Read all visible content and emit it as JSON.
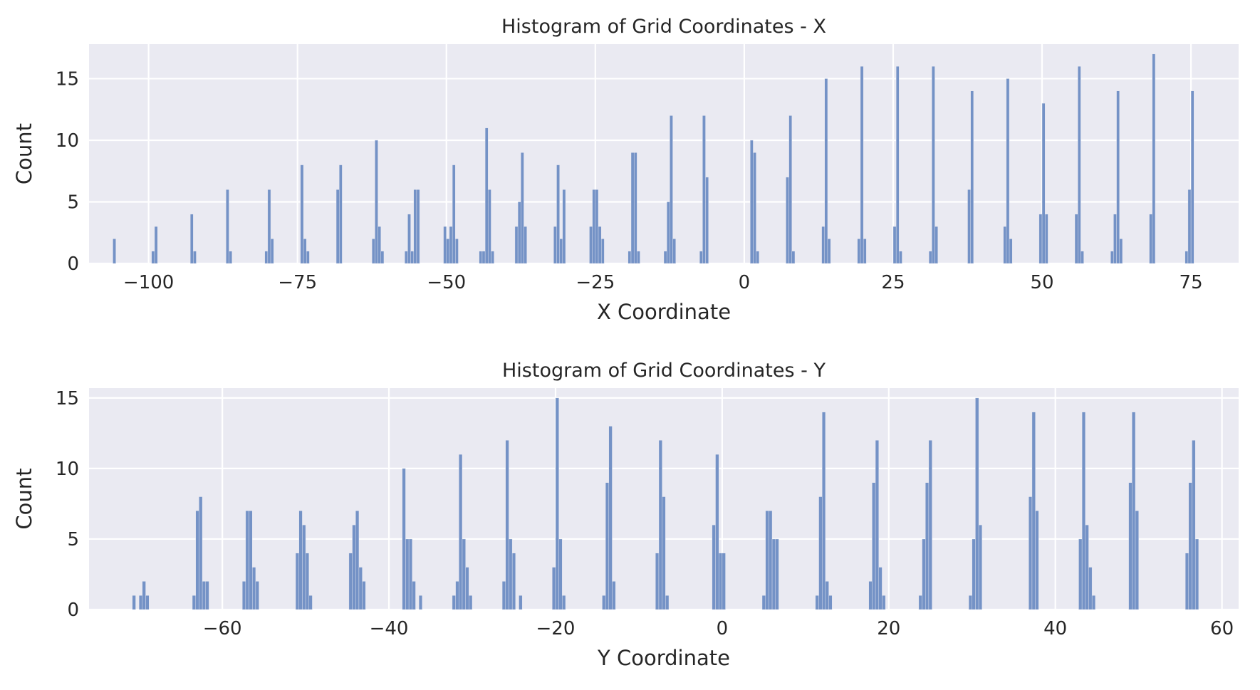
{
  "chart_data": [
    {
      "type": "bar",
      "title": "Histogram of Grid Coordinates - X",
      "xlabel": "X Coordinate",
      "ylabel": "Count",
      "xlim": [
        -110,
        83
      ],
      "ylim": [
        0,
        17.8
      ],
      "xticks": [
        -100,
        -75,
        -50,
        -25,
        0,
        25,
        50,
        75
      ],
      "xtick_labels": [
        "−100",
        "−75",
        "−50",
        "−25",
        "0",
        "25",
        "50",
        "75"
      ],
      "yticks": [
        0,
        5,
        10,
        15
      ],
      "ytick_labels": [
        "0",
        "5",
        "10",
        "15"
      ],
      "grid": true,
      "bar_color": "#7492c6",
      "bin_width": 0.5,
      "bins": [
        {
          "x": -106,
          "count": 2
        },
        {
          "x": -99.5,
          "count": 1
        },
        {
          "x": -99,
          "count": 3
        },
        {
          "x": -93,
          "count": 4
        },
        {
          "x": -92.5,
          "count": 1
        },
        {
          "x": -87,
          "count": 6
        },
        {
          "x": -86.5,
          "count": 1
        },
        {
          "x": -80.5,
          "count": 1
        },
        {
          "x": -80,
          "count": 6
        },
        {
          "x": -79.5,
          "count": 2
        },
        {
          "x": -74.5,
          "count": 8
        },
        {
          "x": -74,
          "count": 2
        },
        {
          "x": -73.5,
          "count": 1
        },
        {
          "x": -68.5,
          "count": 6
        },
        {
          "x": -68,
          "count": 8
        },
        {
          "x": -62.5,
          "count": 2
        },
        {
          "x": -62,
          "count": 10
        },
        {
          "x": -61.5,
          "count": 3
        },
        {
          "x": -61,
          "count": 1
        },
        {
          "x": -57,
          "count": 1
        },
        {
          "x": -56.5,
          "count": 4
        },
        {
          "x": -56,
          "count": 1
        },
        {
          "x": -55.5,
          "count": 6
        },
        {
          "x": -55,
          "count": 6
        },
        {
          "x": -50.5,
          "count": 3
        },
        {
          "x": -50,
          "count": 2
        },
        {
          "x": -49.5,
          "count": 3
        },
        {
          "x": -49,
          "count": 8
        },
        {
          "x": -48.5,
          "count": 2
        },
        {
          "x": -44.5,
          "count": 1
        },
        {
          "x": -44,
          "count": 1
        },
        {
          "x": -43.5,
          "count": 11
        },
        {
          "x": -43,
          "count": 6
        },
        {
          "x": -42.5,
          "count": 1
        },
        {
          "x": -38.5,
          "count": 3
        },
        {
          "x": -38,
          "count": 5
        },
        {
          "x": -37.5,
          "count": 9
        },
        {
          "x": -37,
          "count": 3
        },
        {
          "x": -32,
          "count": 3
        },
        {
          "x": -31.5,
          "count": 8
        },
        {
          "x": -31,
          "count": 2
        },
        {
          "x": -30.5,
          "count": 6
        },
        {
          "x": -26,
          "count": 3
        },
        {
          "x": -25.5,
          "count": 6
        },
        {
          "x": -25,
          "count": 6
        },
        {
          "x": -24.5,
          "count": 3
        },
        {
          "x": -24,
          "count": 2
        },
        {
          "x": -19.5,
          "count": 1
        },
        {
          "x": -19,
          "count": 9
        },
        {
          "x": -18.5,
          "count": 9
        },
        {
          "x": -18,
          "count": 1
        },
        {
          "x": -13.5,
          "count": 1
        },
        {
          "x": -13,
          "count": 5
        },
        {
          "x": -12.5,
          "count": 12
        },
        {
          "x": -12,
          "count": 2
        },
        {
          "x": -7.5,
          "count": 1
        },
        {
          "x": -7,
          "count": 12
        },
        {
          "x": -6.5,
          "count": 7
        },
        {
          "x": 1,
          "count": 10
        },
        {
          "x": 1.5,
          "count": 9
        },
        {
          "x": 2,
          "count": 1
        },
        {
          "x": 7,
          "count": 7
        },
        {
          "x": 7.5,
          "count": 12
        },
        {
          "x": 8,
          "count": 1
        },
        {
          "x": 13,
          "count": 3
        },
        {
          "x": 13.5,
          "count": 15
        },
        {
          "x": 14,
          "count": 2
        },
        {
          "x": 19,
          "count": 2
        },
        {
          "x": 19.5,
          "count": 16
        },
        {
          "x": 20,
          "count": 2
        },
        {
          "x": 25,
          "count": 3
        },
        {
          "x": 25.5,
          "count": 16
        },
        {
          "x": 26,
          "count": 1
        },
        {
          "x": 31,
          "count": 1
        },
        {
          "x": 31.5,
          "count": 16
        },
        {
          "x": 32,
          "count": 3
        },
        {
          "x": 37.5,
          "count": 6
        },
        {
          "x": 38,
          "count": 14
        },
        {
          "x": 43.5,
          "count": 3
        },
        {
          "x": 44,
          "count": 15
        },
        {
          "x": 44.5,
          "count": 2
        },
        {
          "x": 49.5,
          "count": 4
        },
        {
          "x": 50,
          "count": 13
        },
        {
          "x": 50.5,
          "count": 4
        },
        {
          "x": 55.5,
          "count": 4
        },
        {
          "x": 56,
          "count": 16
        },
        {
          "x": 56.5,
          "count": 1
        },
        {
          "x": 61.5,
          "count": 1
        },
        {
          "x": 62,
          "count": 4
        },
        {
          "x": 62.5,
          "count": 14
        },
        {
          "x": 63,
          "count": 2
        },
        {
          "x": 68,
          "count": 4
        },
        {
          "x": 68.5,
          "count": 17
        },
        {
          "x": 74,
          "count": 1
        },
        {
          "x": 74.5,
          "count": 6
        },
        {
          "x": 75,
          "count": 14
        }
      ]
    },
    {
      "type": "bar",
      "title": "Histogram of Grid Coordinates - Y",
      "xlabel": "Y Coordinate",
      "ylabel": "Count",
      "xlim": [
        -76,
        62
      ],
      "ylim": [
        0,
        15.7
      ],
      "xticks": [
        -60,
        -40,
        -20,
        0,
        20,
        40,
        60
      ],
      "xtick_labels": [
        "−60",
        "−40",
        "−20",
        "0",
        "20",
        "40",
        "60"
      ],
      "yticks": [
        0,
        5,
        10,
        15
      ],
      "ytick_labels": [
        "0",
        "5",
        "10",
        "15"
      ],
      "grid": true,
      "bar_color": "#7492c6",
      "bin_width": 0.4,
      "bins": [
        {
          "x": -70.8,
          "count": 1
        },
        {
          "x": -70,
          "count": 1
        },
        {
          "x": -69.6,
          "count": 2
        },
        {
          "x": -69.2,
          "count": 1
        },
        {
          "x": -63.6,
          "count": 1
        },
        {
          "x": -63.2,
          "count": 7
        },
        {
          "x": -62.8,
          "count": 8
        },
        {
          "x": -62.4,
          "count": 2
        },
        {
          "x": -62,
          "count": 2
        },
        {
          "x": -57.6,
          "count": 2
        },
        {
          "x": -57.2,
          "count": 7
        },
        {
          "x": -56.8,
          "count": 7
        },
        {
          "x": -56.4,
          "count": 3
        },
        {
          "x": -56,
          "count": 2
        },
        {
          "x": -51.2,
          "count": 4
        },
        {
          "x": -50.8,
          "count": 7
        },
        {
          "x": -50.4,
          "count": 6
        },
        {
          "x": -50,
          "count": 4
        },
        {
          "x": -49.6,
          "count": 1
        },
        {
          "x": -44.8,
          "count": 4
        },
        {
          "x": -44.4,
          "count": 6
        },
        {
          "x": -44,
          "count": 7
        },
        {
          "x": -43.6,
          "count": 3
        },
        {
          "x": -43.2,
          "count": 2
        },
        {
          "x": -38.4,
          "count": 10
        },
        {
          "x": -38,
          "count": 5
        },
        {
          "x": -37.6,
          "count": 5
        },
        {
          "x": -37.2,
          "count": 2
        },
        {
          "x": -36.4,
          "count": 1
        },
        {
          "x": -32.4,
          "count": 1
        },
        {
          "x": -32,
          "count": 2
        },
        {
          "x": -31.6,
          "count": 11
        },
        {
          "x": -31.2,
          "count": 5
        },
        {
          "x": -30.8,
          "count": 3
        },
        {
          "x": -30.4,
          "count": 1
        },
        {
          "x": -26.4,
          "count": 2
        },
        {
          "x": -26,
          "count": 12
        },
        {
          "x": -25.6,
          "count": 5
        },
        {
          "x": -25.2,
          "count": 4
        },
        {
          "x": -24.4,
          "count": 1
        },
        {
          "x": -20.4,
          "count": 3
        },
        {
          "x": -20,
          "count": 15
        },
        {
          "x": -19.6,
          "count": 5
        },
        {
          "x": -19.2,
          "count": 1
        },
        {
          "x": -14.4,
          "count": 1
        },
        {
          "x": -14,
          "count": 9
        },
        {
          "x": -13.6,
          "count": 13
        },
        {
          "x": -13.2,
          "count": 2
        },
        {
          "x": -8,
          "count": 4
        },
        {
          "x": -7.6,
          "count": 12
        },
        {
          "x": -7.2,
          "count": 8
        },
        {
          "x": -6.8,
          "count": 1
        },
        {
          "x": -1.2,
          "count": 6
        },
        {
          "x": -0.8,
          "count": 11
        },
        {
          "x": -0.4,
          "count": 4
        },
        {
          "x": 0,
          "count": 4
        },
        {
          "x": 4.8,
          "count": 1
        },
        {
          "x": 5.2,
          "count": 7
        },
        {
          "x": 5.6,
          "count": 7
        },
        {
          "x": 6,
          "count": 5
        },
        {
          "x": 6.4,
          "count": 5
        },
        {
          "x": 11.2,
          "count": 1
        },
        {
          "x": 11.6,
          "count": 8
        },
        {
          "x": 12,
          "count": 14
        },
        {
          "x": 12.4,
          "count": 2
        },
        {
          "x": 12.8,
          "count": 1
        },
        {
          "x": 17.6,
          "count": 2
        },
        {
          "x": 18,
          "count": 9
        },
        {
          "x": 18.4,
          "count": 12
        },
        {
          "x": 18.8,
          "count": 3
        },
        {
          "x": 19.2,
          "count": 1
        },
        {
          "x": 23.6,
          "count": 1
        },
        {
          "x": 24,
          "count": 5
        },
        {
          "x": 24.4,
          "count": 9
        },
        {
          "x": 24.8,
          "count": 12
        },
        {
          "x": 29.6,
          "count": 1
        },
        {
          "x": 30,
          "count": 5
        },
        {
          "x": 30.4,
          "count": 15
        },
        {
          "x": 30.8,
          "count": 6
        },
        {
          "x": 36.8,
          "count": 8
        },
        {
          "x": 37.2,
          "count": 14
        },
        {
          "x": 37.6,
          "count": 7
        },
        {
          "x": 42.8,
          "count": 5
        },
        {
          "x": 43.2,
          "count": 14
        },
        {
          "x": 43.6,
          "count": 6
        },
        {
          "x": 44,
          "count": 3
        },
        {
          "x": 44.4,
          "count": 1
        },
        {
          "x": 48.8,
          "count": 9
        },
        {
          "x": 49.2,
          "count": 14
        },
        {
          "x": 49.6,
          "count": 7
        },
        {
          "x": 55.6,
          "count": 4
        },
        {
          "x": 56,
          "count": 9
        },
        {
          "x": 56.4,
          "count": 12
        },
        {
          "x": 56.8,
          "count": 5
        }
      ]
    }
  ]
}
